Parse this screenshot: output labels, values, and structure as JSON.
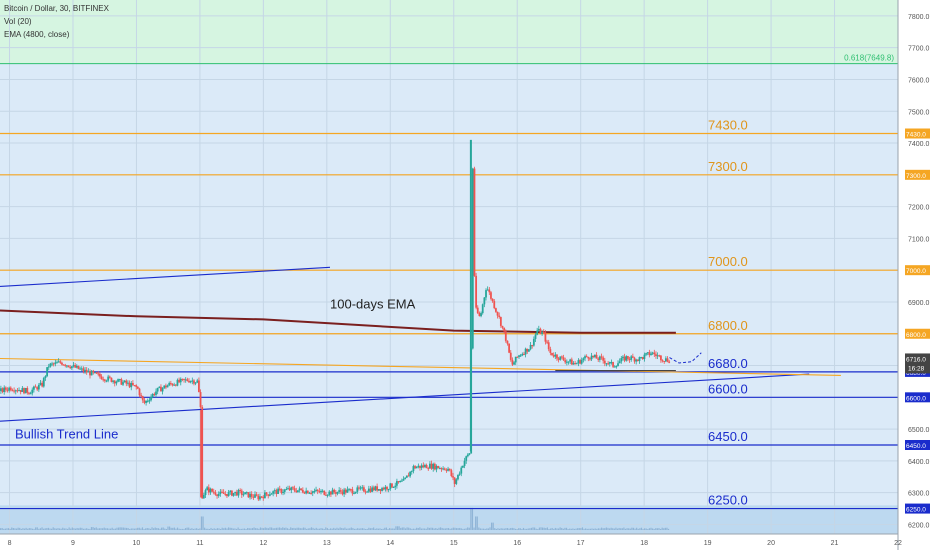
{
  "header": {
    "symbol": "Bitcoin / Dollar, 30, BITFINEX",
    "vol": "Vol (20)",
    "ema": "EMA (4800, close)"
  },
  "annotations": {
    "ema_label": "100-days EMA",
    "trend_label": "Bullish Trend Line",
    "fib_label": "0.618(7649.8)"
  },
  "colors": {
    "upper_zone": "#d6f5e1",
    "main_zone": "#dbeaf8",
    "volume_zone": "#b7d6ef",
    "resistance": "#f5a623",
    "support": "#1a2ccc",
    "ema": "#7a1f1f",
    "fib": "#2fbf71",
    "candle_up": "#26a69a",
    "candle_down": "#ef5350",
    "price_line": "#444444"
  },
  "chart_data": {
    "type": "candlestick",
    "title": "Bitcoin / Dollar, 30, BITFINEX",
    "ylim": [
      6170,
      7850
    ],
    "xlim": [
      7.85,
      22
    ],
    "x_ticks": [
      "8",
      "9",
      "10",
      "11",
      "12",
      "13",
      "14",
      "15",
      "16",
      "17",
      "18",
      "19",
      "20",
      "21",
      "22"
    ],
    "y_ticks": [
      "7800.0",
      "7700.0",
      "7600.0",
      "7500.0",
      "7400.0",
      "7300.0",
      "7200.0",
      "7100.0",
      "7000.0",
      "6900.0",
      "6800.0",
      "6700.0",
      "6600.0",
      "6500.0",
      "6400.0",
      "6300.0",
      "6200.0"
    ],
    "fib_level": 7649.8,
    "resistance_levels": [
      {
        "value": 7430,
        "label": "7430.0"
      },
      {
        "value": 7300,
        "label": "7300.0"
      },
      {
        "value": 7000,
        "label": "7000.0"
      },
      {
        "value": 6800,
        "label": "6800.0"
      }
    ],
    "support_levels": [
      {
        "value": 6680,
        "label": "6680.0"
      },
      {
        "value": 6600,
        "label": "6600.0"
      },
      {
        "value": 6450,
        "label": "6450.0"
      },
      {
        "value": 6250,
        "label": "6250.0"
      }
    ],
    "last_price": {
      "value": 6716,
      "label": "6716.0",
      "countdown": "16:28"
    },
    "price_tags": [
      {
        "value": 7430,
        "label": "7430.0",
        "kind": "resistance"
      },
      {
        "value": 7300,
        "label": "7300.0",
        "kind": "resistance"
      },
      {
        "value": 7000,
        "label": "7000.0",
        "kind": "resistance"
      },
      {
        "value": 6800,
        "label": "6800.0",
        "kind": "resistance"
      },
      {
        "value": 6680,
        "label": "6680.0",
        "kind": "support"
      },
      {
        "value": 6600,
        "label": "6600.0",
        "kind": "support"
      },
      {
        "value": 6450,
        "label": "6450.0",
        "kind": "support"
      },
      {
        "value": 6250,
        "label": "6250.0",
        "kind": "support"
      }
    ],
    "ema_line": {
      "name": "100-days EMA",
      "points": [
        [
          7.85,
          6873
        ],
        [
          10,
          6855
        ],
        [
          12,
          6845
        ],
        [
          15,
          6810
        ],
        [
          17,
          6803
        ],
        [
          18.5,
          6803
        ]
      ]
    },
    "trend_lines": [
      {
        "name": "Bullish Trend Line",
        "points": [
          [
            7.85,
            6525
          ],
          [
            20.6,
            6673
          ]
        ],
        "color": "support"
      },
      {
        "name": "",
        "points": [
          [
            7.85,
            6949
          ],
          [
            13.05,
            7009
          ]
        ],
        "color": "support"
      },
      {
        "name": "",
        "points": [
          [
            7.85,
            6722
          ],
          [
            21.1,
            6669
          ]
        ],
        "color": "resistance"
      },
      {
        "name": "",
        "points": [
          [
            16.6,
            6684
          ],
          [
            18.5,
            6684
          ]
        ],
        "color": "price_line"
      }
    ],
    "projection": [
      [
        18.4,
        6725
      ],
      [
        18.55,
        6708
      ],
      [
        18.75,
        6712
      ],
      [
        18.9,
        6740
      ]
    ],
    "path": [
      [
        7.85,
        6620
      ],
      [
        8.0,
        6630
      ],
      [
        8.3,
        6618
      ],
      [
        8.5,
        6640
      ],
      [
        8.6,
        6700
      ],
      [
        8.8,
        6710
      ],
      [
        9.0,
        6695
      ],
      [
        9.2,
        6680
      ],
      [
        9.5,
        6660
      ],
      [
        9.8,
        6645
      ],
      [
        10.0,
        6630
      ],
      [
        10.1,
        6580
      ],
      [
        10.3,
        6620
      ],
      [
        10.5,
        6640
      ],
      [
        10.8,
        6655
      ],
      [
        10.95,
        6650
      ],
      [
        11.0,
        6560
      ],
      [
        11.02,
        6290
      ],
      [
        11.1,
        6310
      ],
      [
        11.3,
        6295
      ],
      [
        11.6,
        6300
      ],
      [
        11.9,
        6285
      ],
      [
        12.1,
        6300
      ],
      [
        12.4,
        6310
      ],
      [
        12.7,
        6305
      ],
      [
        13.0,
        6300
      ],
      [
        13.3,
        6305
      ],
      [
        13.6,
        6310
      ],
      [
        13.9,
        6315
      ],
      [
        14.2,
        6335
      ],
      [
        14.35,
        6380
      ],
      [
        14.6,
        6385
      ],
      [
        14.9,
        6375
      ],
      [
        15.0,
        6330
      ],
      [
        15.15,
        6400
      ],
      [
        15.25,
        6430
      ],
      [
        15.28,
        7400
      ],
      [
        15.32,
        6880
      ],
      [
        15.4,
        6850
      ],
      [
        15.5,
        6950
      ],
      [
        15.6,
        6900
      ],
      [
        15.7,
        6850
      ],
      [
        15.8,
        6790
      ],
      [
        15.9,
        6700
      ],
      [
        16.0,
        6730
      ],
      [
        16.2,
        6760
      ],
      [
        16.3,
        6810
      ],
      [
        16.4,
        6800
      ],
      [
        16.5,
        6740
      ],
      [
        16.7,
        6720
      ],
      [
        16.9,
        6705
      ],
      [
        17.1,
        6730
      ],
      [
        17.3,
        6720
      ],
      [
        17.5,
        6700
      ],
      [
        17.7,
        6725
      ],
      [
        17.9,
        6720
      ],
      [
        18.1,
        6740
      ],
      [
        18.3,
        6720
      ],
      [
        18.4,
        6716
      ]
    ],
    "volume_spikes": [
      [
        11.02,
        0.55
      ],
      [
        15.27,
        0.9
      ],
      [
        15.35,
        0.55
      ],
      [
        15.6,
        0.3
      ],
      [
        9.3,
        0.12
      ],
      [
        10.5,
        0.14
      ],
      [
        14.1,
        0.15
      ]
    ]
  }
}
